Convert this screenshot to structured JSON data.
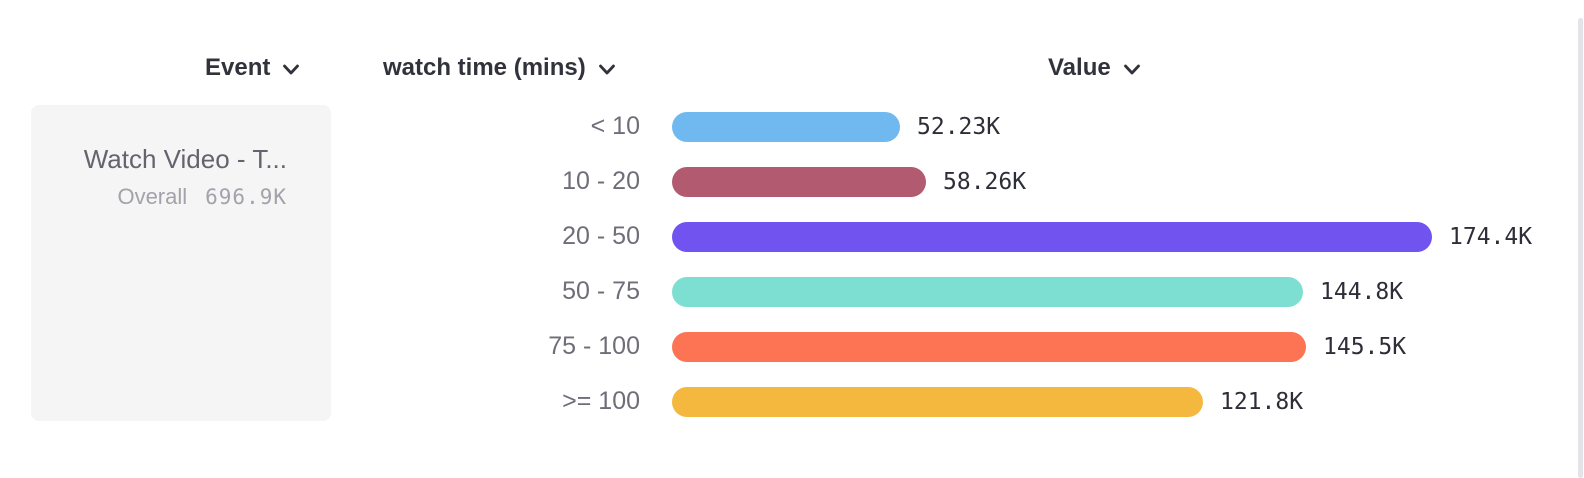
{
  "columns": {
    "event": {
      "label": "Event"
    },
    "breakdown": {
      "label": "watch time (mins)"
    },
    "value": {
      "label": "Value"
    }
  },
  "event_card": {
    "name": "Watch Video - T...",
    "overall_label": "Overall",
    "overall_value": "696.9K"
  },
  "chart_data": {
    "type": "bar",
    "orientation": "horizontal",
    "title": "",
    "xlabel": "Value",
    "ylabel": "watch time (mins)",
    "categories": [
      "< 10",
      "10 - 20",
      "20 - 50",
      "50 - 75",
      "75 - 100",
      ">= 100"
    ],
    "values": [
      52230,
      58260,
      174400,
      144800,
      145500,
      121800
    ],
    "value_labels": [
      "52.23K",
      "58.26K",
      "174.4K",
      "144.8K",
      "145.5K",
      "121.8K"
    ],
    "bar_colors": [
      "#70b9f0",
      "#b25a70",
      "#7153f0",
      "#7ddfd2",
      "#fc7454",
      "#f5b83e"
    ],
    "xlim": [
      0,
      174400
    ],
    "grid": false,
    "legend": false
  },
  "icons": {
    "chevron_down": "chevron-down"
  }
}
